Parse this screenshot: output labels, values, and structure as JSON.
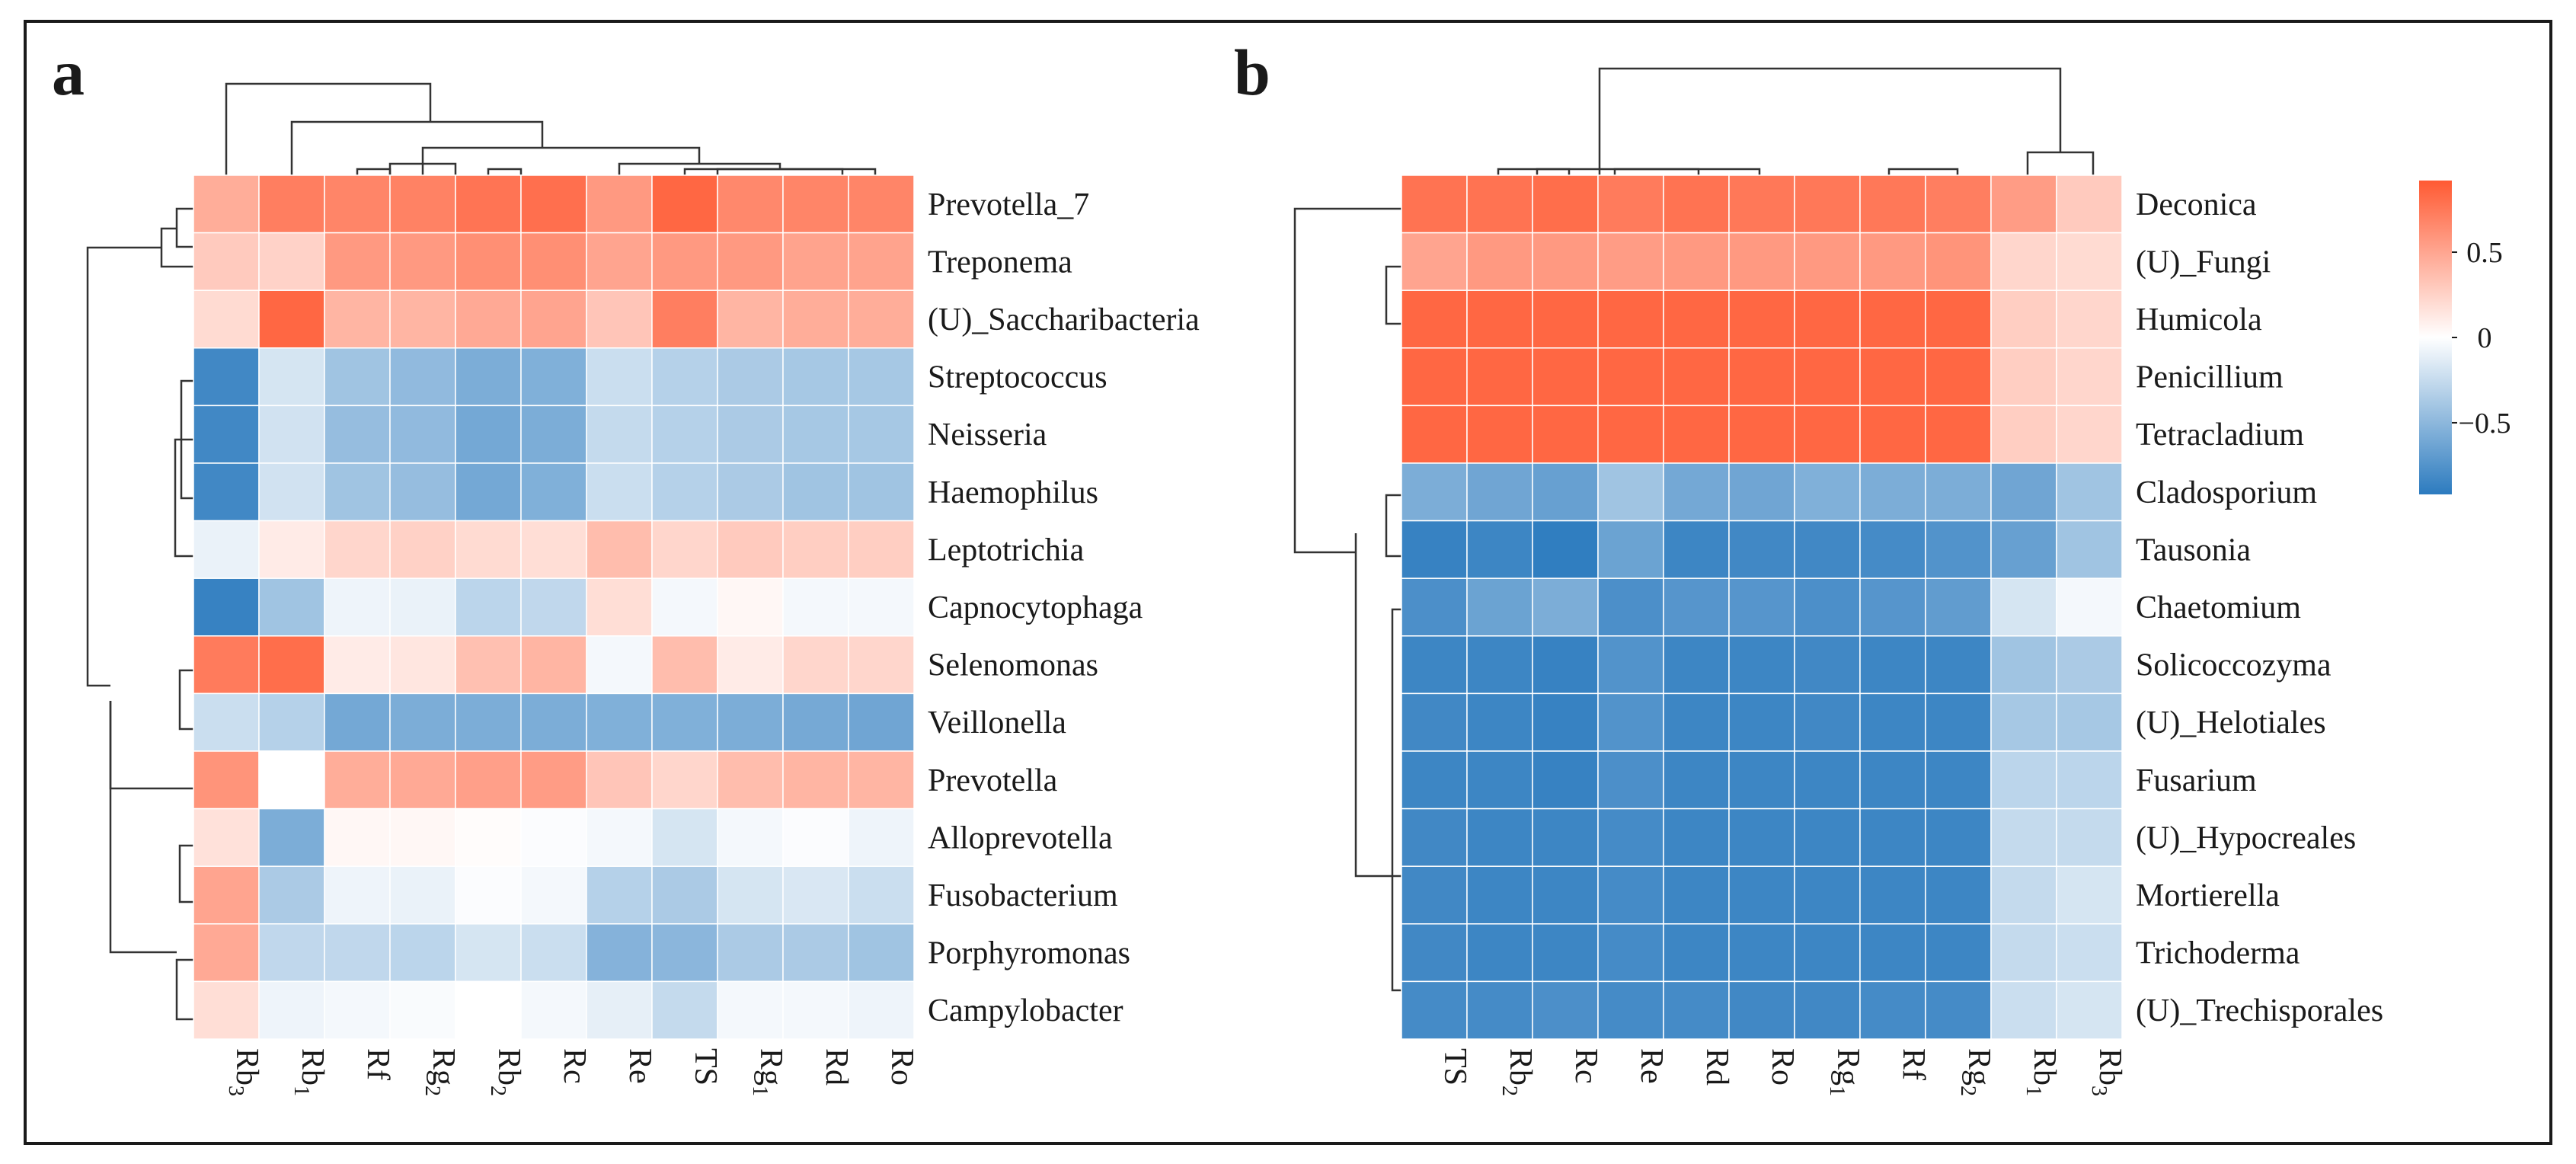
{
  "chart_data": [
    {
      "type": "heatmap",
      "panel_label": "a",
      "title": "",
      "value_range": [
        -1,
        1
      ],
      "columns": [
        {
          "base": "Rb",
          "sub": "3"
        },
        {
          "base": "Rb",
          "sub": "1"
        },
        {
          "base": "Rf",
          "sub": ""
        },
        {
          "base": "Rg",
          "sub": "2"
        },
        {
          "base": "Rb",
          "sub": "2"
        },
        {
          "base": "Rc",
          "sub": ""
        },
        {
          "base": "Re",
          "sub": ""
        },
        {
          "base": "TS",
          "sub": ""
        },
        {
          "base": "Rg",
          "sub": "1"
        },
        {
          "base": "Rd",
          "sub": ""
        },
        {
          "base": "Ro",
          "sub": ""
        }
      ],
      "rows": [
        "Prevotella_7",
        "Treponema",
        "(U)_Saccharibacteria",
        "Streptococcus",
        "Neisseria",
        "Haemophilus",
        "Leptotrichia",
        "Capnocytophaga",
        "Selenomonas",
        "Veillonella",
        "Prevotella",
        "Alloprevotella",
        "Fusobacterium",
        "Porphyromonas",
        "Campylobacter"
      ],
      "values": [
        [
          0.5,
          0.78,
          0.74,
          0.76,
          0.84,
          0.87,
          0.62,
          0.92,
          0.72,
          0.74,
          0.74
        ],
        [
          0.32,
          0.27,
          0.62,
          0.62,
          0.68,
          0.68,
          0.55,
          0.62,
          0.62,
          0.56,
          0.56
        ],
        [
          0.22,
          0.92,
          0.45,
          0.45,
          0.52,
          0.55,
          0.35,
          0.78,
          0.45,
          0.5,
          0.5
        ],
        [
          -0.9,
          -0.2,
          -0.45,
          -0.52,
          -0.62,
          -0.6,
          -0.25,
          -0.35,
          -0.4,
          -0.42,
          -0.42
        ],
        [
          -0.9,
          -0.22,
          -0.5,
          -0.52,
          -0.66,
          -0.62,
          -0.28,
          -0.35,
          -0.4,
          -0.42,
          -0.42
        ],
        [
          -0.9,
          -0.22,
          -0.45,
          -0.5,
          -0.66,
          -0.6,
          -0.25,
          -0.35,
          -0.4,
          -0.45,
          -0.45
        ],
        [
          -0.1,
          0.12,
          0.25,
          0.28,
          0.22,
          0.2,
          0.4,
          0.25,
          0.32,
          0.3,
          0.3
        ],
        [
          -0.95,
          -0.45,
          -0.08,
          -0.1,
          -0.32,
          -0.3,
          0.2,
          -0.05,
          0.05,
          -0.05,
          -0.05
        ],
        [
          0.8,
          0.88,
          0.12,
          0.15,
          0.38,
          0.45,
          -0.05,
          0.4,
          0.12,
          0.25,
          0.25
        ],
        [
          -0.25,
          -0.35,
          -0.66,
          -0.62,
          -0.62,
          -0.62,
          -0.6,
          -0.6,
          -0.62,
          -0.65,
          -0.68
        ],
        [
          0.65,
          0.0,
          0.5,
          0.52,
          0.58,
          0.6,
          0.35,
          0.25,
          0.4,
          0.45,
          0.45
        ],
        [
          0.18,
          -0.62,
          0.05,
          0.05,
          0.02,
          -0.02,
          -0.05,
          -0.2,
          -0.05,
          -0.02,
          -0.08
        ],
        [
          0.55,
          -0.4,
          -0.08,
          -0.1,
          -0.02,
          -0.05,
          -0.35,
          -0.4,
          -0.2,
          -0.18,
          -0.25
        ],
        [
          0.52,
          -0.3,
          -0.3,
          -0.32,
          -0.2,
          -0.25,
          -0.58,
          -0.55,
          -0.4,
          -0.4,
          -0.45
        ],
        [
          0.2,
          -0.08,
          -0.05,
          -0.03,
          0.0,
          -0.05,
          -0.12,
          -0.28,
          -0.05,
          -0.05,
          -0.08
        ]
      ]
    },
    {
      "type": "heatmap",
      "panel_label": "b",
      "title": "",
      "value_range": [
        -1,
        1
      ],
      "columns": [
        {
          "base": "TS",
          "sub": ""
        },
        {
          "base": "Rb",
          "sub": "2"
        },
        {
          "base": "Rc",
          "sub": ""
        },
        {
          "base": "Re",
          "sub": ""
        },
        {
          "base": "Rd",
          "sub": ""
        },
        {
          "base": "Ro",
          "sub": ""
        },
        {
          "base": "Rg",
          "sub": "1"
        },
        {
          "base": "Rf",
          "sub": ""
        },
        {
          "base": "Rg",
          "sub": "2"
        },
        {
          "base": "Rb",
          "sub": "1"
        },
        {
          "base": "Rb",
          "sub": "3"
        }
      ],
      "rows": [
        "Deconica",
        "(U)_Fungi",
        "Humicola",
        "Penicillium",
        "Tetracladium",
        "Cladosporium",
        "Tausonia",
        "Chaetomium",
        "Solicoccozyma",
        "(U)_Helotiales",
        "Fusarium",
        "(U)_Hypocreales",
        "Mortierella",
        "Trichoderma",
        "(U)_Trechisporales"
      ],
      "values": [
        [
          0.85,
          0.85,
          0.88,
          0.8,
          0.85,
          0.82,
          0.82,
          0.82,
          0.78,
          0.6,
          0.32
        ],
        [
          0.55,
          0.62,
          0.62,
          0.6,
          0.62,
          0.62,
          0.62,
          0.62,
          0.65,
          0.25,
          0.22
        ],
        [
          0.92,
          0.92,
          0.92,
          0.92,
          0.92,
          0.92,
          0.92,
          0.92,
          0.92,
          0.3,
          0.25
        ],
        [
          0.92,
          0.92,
          0.92,
          0.92,
          0.92,
          0.92,
          0.92,
          0.92,
          0.92,
          0.3,
          0.25
        ],
        [
          0.92,
          0.92,
          0.92,
          0.92,
          0.92,
          0.92,
          0.92,
          0.92,
          0.92,
          0.3,
          0.25
        ],
        [
          -0.62,
          -0.68,
          -0.72,
          -0.45,
          -0.66,
          -0.68,
          -0.6,
          -0.62,
          -0.62,
          -0.68,
          -0.45
        ],
        [
          -0.95,
          -0.92,
          -0.98,
          -0.7,
          -0.92,
          -0.9,
          -0.9,
          -0.88,
          -0.82,
          -0.72,
          -0.45
        ],
        [
          -0.85,
          -0.7,
          -0.62,
          -0.85,
          -0.8,
          -0.8,
          -0.85,
          -0.8,
          -0.75,
          -0.2,
          -0.05
        ],
        [
          -0.92,
          -0.92,
          -0.95,
          -0.82,
          -0.92,
          -0.92,
          -0.9,
          -0.92,
          -0.92,
          -0.45,
          -0.4
        ],
        [
          -0.9,
          -0.92,
          -0.95,
          -0.82,
          -0.92,
          -0.92,
          -0.9,
          -0.92,
          -0.92,
          -0.42,
          -0.42
        ],
        [
          -0.92,
          -0.92,
          -0.95,
          -0.85,
          -0.92,
          -0.92,
          -0.92,
          -0.92,
          -0.92,
          -0.32,
          -0.32
        ],
        [
          -0.9,
          -0.92,
          -0.92,
          -0.88,
          -0.92,
          -0.92,
          -0.92,
          -0.92,
          -0.92,
          -0.28,
          -0.28
        ],
        [
          -0.9,
          -0.92,
          -0.92,
          -0.88,
          -0.92,
          -0.92,
          -0.92,
          -0.92,
          -0.92,
          -0.28,
          -0.2
        ],
        [
          -0.9,
          -0.92,
          -0.92,
          -0.88,
          -0.92,
          -0.92,
          -0.92,
          -0.92,
          -0.92,
          -0.28,
          -0.25
        ],
        [
          -0.88,
          -0.88,
          -0.85,
          -0.88,
          -0.88,
          -0.9,
          -0.9,
          -0.88,
          -0.88,
          -0.25,
          -0.2
        ]
      ]
    }
  ],
  "colorbar": {
    "ticks": [
      {
        "value": 0.5,
        "label": "0.5"
      },
      {
        "value": 0,
        "label": "0"
      },
      {
        "value": -0.5,
        "label": "−0.5"
      }
    ],
    "range": [
      -0.92,
      0.92
    ],
    "low_color": "#2c7bbf",
    "mid_color": "#ffffff",
    "high_color": "#ff5a33"
  }
}
